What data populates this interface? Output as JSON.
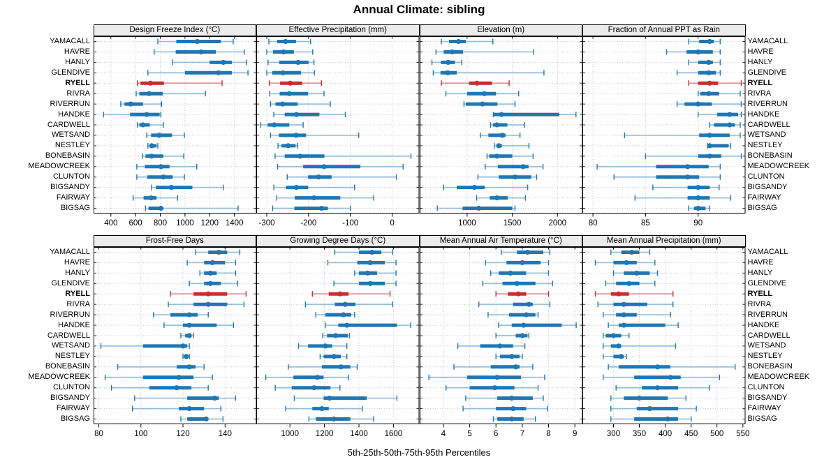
{
  "title": "Annual Climate: sibling",
  "footer": "5th-25th-50th-75th-95th Percentiles",
  "percentiles": [
    "5th",
    "25th",
    "50th",
    "75th",
    "95th"
  ],
  "stations": [
    "YAMACALL",
    "HAVRE",
    "HANLY",
    "GLENDIVE",
    "RYELL",
    "RIVRA",
    "RIVERRUN",
    "HANDKE",
    "CARDWELL",
    "WETSAND",
    "NESTLEY",
    "BONEBASIN",
    "MEADOWCREEK",
    "CLUNTON",
    "BIGSANDY",
    "FAIRWAY",
    "BIGSAG"
  ],
  "highlight_station": "RYELL",
  "colors": {
    "series": "#1F77B4",
    "series_light": "rgba(31,119,180,0.42)",
    "highlight": "#C62F2F",
    "highlight_light": "rgba(198,47,47,0.45)",
    "grid": "#c4c4c4",
    "strip_bg": "#ececec",
    "border": "#000000"
  },
  "chart_data": [
    {
      "type": "scatter",
      "mark": "point_with_percentile_intervals",
      "title": "Design Freeze Index (°C)",
      "ticks": [
        400,
        600,
        800,
        1000,
        1200,
        1400
      ],
      "domain": [
        260,
        1580
      ],
      "values": [
        [
          780,
          930,
          1100,
          1290,
          1390
        ],
        [
          750,
          925,
          1130,
          1250,
          1480
        ],
        [
          900,
          1200,
          1310,
          1380,
          1500
        ],
        [
          700,
          1000,
          1270,
          1380,
          1510
        ],
        [
          615,
          640,
          720,
          830,
          1300
        ],
        [
          605,
          630,
          710,
          820,
          1165
        ],
        [
          480,
          510,
          560,
          660,
          810
        ],
        [
          340,
          555,
          690,
          795,
          805
        ],
        [
          615,
          630,
          660,
          715,
          825
        ],
        [
          690,
          725,
          790,
          895,
          995
        ],
        [
          700,
          715,
          730,
          770,
          780
        ],
        [
          655,
          680,
          730,
          825,
          990
        ],
        [
          610,
          675,
          805,
          875,
          1095
        ],
        [
          610,
          695,
          825,
          900,
          995
        ],
        [
          730,
          765,
          890,
          1060,
          1310
        ],
        [
          580,
          665,
          725,
          770,
          940
        ],
        [
          680,
          705,
          805,
          825,
          1430
        ]
      ]
    },
    {
      "type": "scatter",
      "mark": "point_with_percentile_intervals",
      "title": "Effective Precipitation (mm)",
      "ticks": [
        -300,
        -200,
        -100,
        0
      ],
      "domain": [
        -325,
        65
      ],
      "values": [
        [
          -295,
          -275,
          -255,
          -230,
          -195
        ],
        [
          -300,
          -285,
          -260,
          -235,
          -190
        ],
        [
          -297,
          -270,
          -225,
          -200,
          -187
        ],
        [
          -300,
          -287,
          -261,
          -218,
          -186
        ],
        [
          -294,
          -268,
          -244,
          -215,
          -169
        ],
        [
          -293,
          -269,
          -246,
          -201,
          -163
        ],
        [
          -291,
          -279,
          -262,
          -226,
          -148
        ],
        [
          -283,
          -257,
          -229,
          -174,
          -112
        ],
        [
          -315,
          -298,
          -282,
          -246,
          -213
        ],
        [
          -291,
          -271,
          -230,
          -206,
          -80
        ],
        [
          -273,
          -265,
          -249,
          -231,
          -226
        ],
        [
          -280,
          -257,
          -220,
          -162,
          45
        ],
        [
          -274,
          -213,
          -163,
          -76,
          26
        ],
        [
          -251,
          -201,
          -176,
          -145,
          10
        ],
        [
          -283,
          -254,
          -229,
          -201,
          -90
        ],
        [
          -276,
          -233,
          -187,
          -124,
          -44
        ],
        [
          -286,
          -234,
          -169,
          -154,
          -100
        ]
      ]
    },
    {
      "type": "scatter",
      "mark": "point_with_percentile_intervals",
      "title": "Elevation (m)",
      "ticks": [
        1000,
        1500,
        2000
      ],
      "domain": [
        475,
        2280
      ],
      "values": [
        [
          715,
          800,
          905,
          985,
          1285
        ],
        [
          655,
          740,
          835,
          955,
          1735
        ],
        [
          610,
          710,
          790,
          865,
          940
        ],
        [
          625,
          705,
          785,
          885,
          1850
        ],
        [
          715,
          1020,
          1110,
          1275,
          1465
        ],
        [
          765,
          1000,
          1190,
          1320,
          1570
        ],
        [
          965,
          985,
          1170,
          1335,
          1530
        ],
        [
          1290,
          1295,
          1380,
          2020,
          2205
        ],
        [
          1260,
          1285,
          1330,
          1445,
          1635
        ],
        [
          1145,
          1235,
          1390,
          1425,
          1585
        ],
        [
          1300,
          1325,
          1350,
          1385,
          1685
        ],
        [
          1220,
          1245,
          1330,
          1500,
          1730
        ],
        [
          1200,
          1340,
          1620,
          1680,
          1840
        ],
        [
          1120,
          1350,
          1530,
          1710,
          1770
        ],
        [
          740,
          885,
          1080,
          1195,
          1670
        ],
        [
          1105,
          1250,
          1330,
          1450,
          1645
        ],
        [
          670,
          950,
          1130,
          1500,
          1530
        ]
      ]
    },
    {
      "type": "scatter",
      "mark": "point_with_percentile_intervals",
      "title": "Fraction of Annual PPT as Rain",
      "ticks": [
        80,
        85,
        90
      ],
      "domain": [
        79,
        94.5
      ],
      "values": [
        [
          89.1,
          90.1,
          91.1,
          91.5,
          92.1
        ],
        [
          87.0,
          88.9,
          90.0,
          91.4,
          92.1
        ],
        [
          89.1,
          90.0,
          91.0,
          91.4,
          92.1
        ],
        [
          88.0,
          90.0,
          91.0,
          91.7,
          92.1
        ],
        [
          89.1,
          90.0,
          91.1,
          91.9,
          94.1
        ],
        [
          90.0,
          90.2,
          91.0,
          92.0,
          94.0
        ],
        [
          88.0,
          88.7,
          90.0,
          91.3,
          94.1
        ],
        [
          90.0,
          91.8,
          93.0,
          93.8,
          94.1
        ],
        [
          91.1,
          91.5,
          93.0,
          93.5,
          94.0
        ],
        [
          83.0,
          90.1,
          91.1,
          93.0,
          94.0
        ],
        [
          90.9,
          91.0,
          91.1,
          92.9,
          93.1
        ],
        [
          85.0,
          90.0,
          91.1,
          92.2,
          94.1
        ],
        [
          80.4,
          86.0,
          89.0,
          91.0,
          92.1
        ],
        [
          82.0,
          86.0,
          89.0,
          90.1,
          92.1
        ],
        [
          85.7,
          89.0,
          90.0,
          91.1,
          92.0
        ],
        [
          84.0,
          89.0,
          90.0,
          91.1,
          93.1
        ],
        [
          89.1,
          89.6,
          90.0,
          90.7,
          91.1
        ]
      ]
    },
    {
      "type": "scatter",
      "mark": "point_with_percentile_intervals",
      "title": "Frost-Free Days",
      "ticks": [
        80,
        100,
        120,
        140
      ],
      "domain": [
        77.5,
        155
      ],
      "values": [
        [
          126,
          132,
          137,
          141,
          147
        ],
        [
          122,
          130,
          134,
          140,
          145
        ],
        [
          128,
          130,
          133,
          136,
          145
        ],
        [
          123,
          130,
          133,
          138,
          146
        ],
        [
          114,
          125,
          132,
          141,
          150
        ],
        [
          113,
          125,
          132,
          141,
          149
        ],
        [
          106,
          114,
          123,
          127,
          132
        ],
        [
          111,
          120,
          123,
          136,
          144
        ],
        [
          119,
          121,
          123,
          124,
          125
        ],
        [
          81,
          101,
          120,
          122,
          123
        ],
        [
          120,
          121,
          121.5,
          122.5,
          123
        ],
        [
          89,
          117,
          123,
          126,
          130
        ],
        [
          83,
          101,
          118,
          125,
          134
        ],
        [
          86,
          104,
          117,
          124,
          132
        ],
        [
          97,
          122,
          135,
          137,
          145
        ],
        [
          96,
          118,
          123,
          130,
          138
        ],
        [
          119,
          122,
          131,
          132,
          139
        ]
      ]
    },
    {
      "type": "scatter",
      "mark": "point_with_percentile_intervals",
      "title": "Growing Degree Days (°C)",
      "ticks": [
        1000,
        1200,
        1400,
        1600
      ],
      "domain": [
        805,
        1750
      ],
      "values": [
        [
          1260,
          1400,
          1475,
          1530,
          1595
        ],
        [
          1220,
          1390,
          1465,
          1550,
          1615
        ],
        [
          1375,
          1400,
          1450,
          1505,
          1615
        ],
        [
          1255,
          1400,
          1465,
          1550,
          1615
        ],
        [
          1130,
          1225,
          1290,
          1340,
          1580
        ],
        [
          1090,
          1260,
          1320,
          1380,
          1595
        ],
        [
          1150,
          1205,
          1310,
          1355,
          1375
        ],
        [
          1205,
          1280,
          1330,
          1620,
          1700
        ],
        [
          1190,
          1215,
          1265,
          1335,
          1345
        ],
        [
          1050,
          1105,
          1205,
          1245,
          1330
        ],
        [
          1175,
          1195,
          1255,
          1295,
          1330
        ],
        [
          990,
          1185,
          1295,
          1350,
          1390
        ],
        [
          860,
          1020,
          1160,
          1195,
          1340
        ],
        [
          915,
          1010,
          1140,
          1235,
          1290
        ],
        [
          1025,
          1195,
          1230,
          1445,
          1620
        ],
        [
          975,
          1130,
          1185,
          1225,
          1420
        ],
        [
          1110,
          1150,
          1255,
          1350,
          1485
        ]
      ]
    },
    {
      "type": "scatter",
      "mark": "point_with_percentile_intervals",
      "title": "Mean Annual Air Temperature (°C)",
      "ticks": [
        4,
        5,
        6,
        7,
        8,
        9
      ],
      "domain": [
        3.1,
        9.3
      ],
      "values": [
        [
          6.2,
          6.8,
          7.2,
          7.8,
          8.05
        ],
        [
          5.6,
          6.4,
          7.0,
          7.7,
          8.0
        ],
        [
          5.8,
          6.1,
          6.55,
          7.15,
          8.0
        ],
        [
          5.5,
          6.25,
          6.8,
          7.5,
          8.15
        ],
        [
          6.0,
          6.45,
          6.85,
          7.15,
          8.0
        ],
        [
          5.35,
          6.65,
          7.25,
          7.4,
          8.05
        ],
        [
          5.7,
          6.5,
          7.15,
          7.5,
          7.6
        ],
        [
          6.1,
          6.6,
          7.05,
          8.5,
          9.05
        ],
        [
          6.0,
          6.75,
          7.0,
          7.2,
          7.25
        ],
        [
          4.55,
          5.4,
          6.15,
          6.65,
          7.1
        ],
        [
          6.0,
          6.15,
          6.6,
          6.9,
          7.0
        ],
        [
          4.4,
          5.8,
          6.75,
          6.9,
          7.4
        ],
        [
          3.45,
          4.9,
          6.05,
          6.95,
          7.85
        ],
        [
          4.1,
          5.0,
          5.95,
          6.7,
          7.6
        ],
        [
          4.85,
          6.05,
          6.6,
          7.4,
          7.8
        ],
        [
          4.75,
          6.0,
          6.65,
          7.15,
          7.95
        ],
        [
          5.9,
          6.05,
          6.6,
          7.05,
          7.5
        ]
      ]
    },
    {
      "type": "scatter",
      "mark": "point_with_percentile_intervals",
      "title": "Mean Annual Precipitation (mm)",
      "ticks": [
        300,
        350,
        400,
        450,
        500,
        550
      ],
      "domain": [
        240,
        555
      ],
      "values": [
        [
          295,
          315,
          335,
          350,
          370
        ],
        [
          265,
          300,
          325,
          345,
          380
        ],
        [
          300,
          320,
          345,
          370,
          385
        ],
        [
          285,
          305,
          330,
          350,
          380
        ],
        [
          265,
          295,
          310,
          330,
          415
        ],
        [
          270,
          300,
          320,
          365,
          415
        ],
        [
          280,
          305,
          320,
          345,
          410
        ],
        [
          290,
          310,
          320,
          400,
          425
        ],
        [
          280,
          285,
          300,
          315,
          330
        ],
        [
          280,
          295,
          310,
          315,
          420
        ],
        [
          280,
          300,
          315,
          320,
          325
        ],
        [
          290,
          310,
          385,
          410,
          535
        ],
        [
          280,
          340,
          410,
          430,
          505
        ],
        [
          305,
          355,
          385,
          425,
          485
        ],
        [
          295,
          320,
          350,
          405,
          440
        ],
        [
          295,
          345,
          370,
          425,
          460
        ],
        [
          295,
          340,
          405,
          425,
          450
        ]
      ]
    }
  ]
}
